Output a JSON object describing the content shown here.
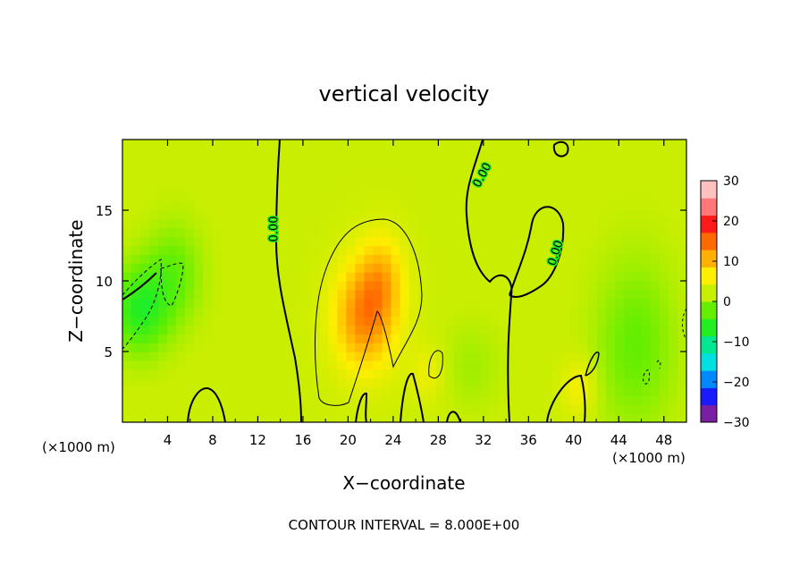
{
  "chart_data": {
    "type": "heatmap",
    "title": "vertical velocity",
    "xlabel": "X−coordinate",
    "ylabel": "Z−coordinate",
    "x_unit_left": "(×1000 m)",
    "x_unit_right": "(×1000 m)",
    "footer": "CONTOUR INTERVAL = 8.000E+00",
    "xlim": [
      0,
      50
    ],
    "ylim": [
      0,
      20
    ],
    "x_ticks": [
      4,
      8,
      12,
      16,
      20,
      24,
      28,
      32,
      36,
      40,
      44,
      48
    ],
    "x_tick_labels": [
      "4",
      "8",
      "12",
      "16",
      "20",
      "24",
      "28",
      "32",
      "36",
      "40",
      "44",
      "48"
    ],
    "y_ticks": [
      5,
      10,
      15
    ],
    "y_tick_labels": [
      "5",
      "10",
      "15"
    ],
    "colorbar": {
      "min": -30,
      "max": 30,
      "ticks": [
        30,
        20,
        10,
        0,
        -10,
        -20,
        -30
      ],
      "tick_labels": [
        "30",
        "20",
        "10",
        "0",
        "−10",
        "−20",
        "−30"
      ],
      "colors": [
        "#7b1fa2",
        "#1a1aff",
        "#0088ff",
        "#00e0e0",
        "#00e890",
        "#22ee22",
        "#66ee00",
        "#c8ee00",
        "#ffee00",
        "#ffb000",
        "#ff6a00",
        "#ff1a1a",
        "#ff7777",
        "#ffc0c0"
      ]
    },
    "contour_labels": [
      "0.00",
      "0.00",
      "0.00"
    ],
    "features": [
      {
        "x": 21.5,
        "z": 7.5,
        "value": 12,
        "sx": 2.8,
        "sz": 3.8
      },
      {
        "x": 23,
        "z": 10.5,
        "value": 6,
        "sx": 2.0,
        "sz": 3.0
      },
      {
        "x": 1.5,
        "z": 8.0,
        "value": -9,
        "sx": 2.5,
        "sz": 3.0
      },
      {
        "x": 4.5,
        "z": 10.5,
        "value": -5,
        "sx": 2.5,
        "sz": 3.5
      },
      {
        "x": 45.5,
        "z": 5.5,
        "value": -5,
        "sx": 3.5,
        "sz": 6.0
      },
      {
        "x": 31.0,
        "z": 4.0,
        "value": -2,
        "sx": 2.5,
        "sz": 3.0
      },
      {
        "x": 27.0,
        "z": 3.5,
        "value": 3,
        "sx": 1.5,
        "sz": 2.0
      },
      {
        "x": 40.5,
        "z": 2.5,
        "value": 4,
        "sx": 1.5,
        "sz": 2.0
      }
    ]
  }
}
